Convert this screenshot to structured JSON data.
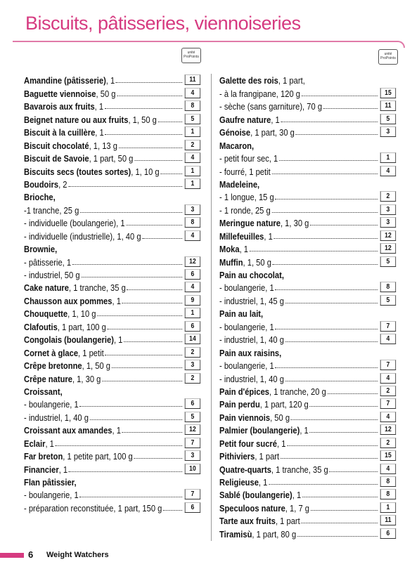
{
  "header": {
    "title": "Biscuits, pâtisseries, viennoiseries",
    "badges": [
      "unité ProPoints",
      "unité ProPoints"
    ]
  },
  "columns": [
    [
      {
        "name": "Amandine (pâtisserie)",
        "detail": ", 1",
        "points": 11
      },
      {
        "name": "Baguette viennoise",
        "detail": ", 50 g",
        "points": 4
      },
      {
        "name": "Bavarois aux fruits",
        "detail": ", 1",
        "points": 8
      },
      {
        "name": "Beignet nature ou aux fruits",
        "detail": ", 1, 50 g",
        "points": 5
      },
      {
        "name": "Biscuit à la cuillère",
        "detail": ", 1",
        "points": 1
      },
      {
        "name": "Biscuit chocolaté",
        "detail": ", 1, 13 g",
        "points": 2
      },
      {
        "name": "Biscuit de Savoie",
        "detail": ", 1 part, 50 g",
        "points": 4
      },
      {
        "name": "Biscuits secs (toutes sortes)",
        "detail": ", 1, 10 g",
        "points": 1
      },
      {
        "name": "Boudoirs",
        "detail": ", 2",
        "points": 1
      },
      {
        "name": "Brioche,"
      },
      {
        "detail": "-1 tranche, 25 g",
        "points": 3
      },
      {
        "detail": "- individuelle (boulangerie), 1",
        "points": 8
      },
      {
        "detail": "- individuelle (industrielle), 1, 40 g",
        "points": 4
      },
      {
        "name": "Brownie,"
      },
      {
        "detail": "- pâtisserie, 1",
        "points": 12
      },
      {
        "detail": "- industriel, 50 g",
        "points": 6
      },
      {
        "name": "Cake nature",
        "detail": ", 1 tranche, 35 g",
        "points": 4
      },
      {
        "name": "Chausson aux pommes",
        "detail": ", 1",
        "points": 9
      },
      {
        "name": "Chouquette",
        "detail": ", 1, 10 g",
        "points": 1
      },
      {
        "name": "Clafoutis",
        "detail": ", 1 part, 100 g",
        "points": 6
      },
      {
        "name": "Congolais (boulangerie)",
        "detail": ", 1",
        "points": 14
      },
      {
        "name": "Cornet à glace",
        "detail": ", 1 petit",
        "points": 2
      },
      {
        "name": "Crêpe bretonne",
        "detail": ", 1, 50 g",
        "points": 3
      },
      {
        "name": "Crêpe nature",
        "detail": ", 1, 30 g",
        "points": 2
      },
      {
        "name": "Croissant,"
      },
      {
        "detail": "- boulangerie, 1",
        "points": 6
      },
      {
        "detail": "- industriel, 1, 40 g",
        "points": 5
      },
      {
        "name": "Croissant aux amandes",
        "detail": ", 1",
        "points": 12
      },
      {
        "name": "Eclair",
        "detail": ", 1",
        "points": 7
      },
      {
        "name": "Far breton",
        "detail": ", 1 petite part, 100 g",
        "points": 3
      },
      {
        "name": "Financier",
        "detail": ", 1",
        "points": 10
      },
      {
        "name": "Flan pâtissier,"
      },
      {
        "detail": "- boulangerie, 1",
        "points": 7
      },
      {
        "detail": "- préparation reconstituée, 1 part, 150 g",
        "points": 6
      }
    ],
    [
      {
        "name": "Galette des rois",
        "detail": ", 1 part,"
      },
      {
        "detail": "- à la frangipane, 120 g",
        "points": 15
      },
      {
        "detail": "- sèche (sans garniture), 70 g",
        "points": 11
      },
      {
        "name": "Gaufre nature",
        "detail": ", 1",
        "points": 5
      },
      {
        "name": "Génoise",
        "detail": ", 1 part, 30 g",
        "points": 3
      },
      {
        "name": "Macaron,"
      },
      {
        "detail": "- petit four sec, 1",
        "points": 1
      },
      {
        "detail": "- fourré, 1 petit",
        "points": 4
      },
      {
        "name": "Madeleine,"
      },
      {
        "detail": "- 1 longue, 15 g",
        "points": 2
      },
      {
        "detail": "- 1 ronde, 25 g",
        "points": 3
      },
      {
        "name": "Meringue nature",
        "detail": ", 1, 30 g",
        "points": 3
      },
      {
        "name": "Millefeuilles",
        "detail": ", 1",
        "points": 12
      },
      {
        "name": "Moka",
        "detail": ", 1",
        "points": 12
      },
      {
        "name": "Muffin",
        "detail": ", 1, 50 g",
        "points": 5
      },
      {
        "name": "Pain au chocolat,"
      },
      {
        "detail": "- boulangerie, 1",
        "points": 8
      },
      {
        "detail": "- industriel, 1, 45 g",
        "points": 5
      },
      {
        "name": "Pain au lait,"
      },
      {
        "detail": "- boulangerie, 1",
        "points": 7
      },
      {
        "detail": "- industriel, 1, 40 g",
        "points": 4
      },
      {
        "name": "Pain aux raisins,"
      },
      {
        "detail": "- boulangerie, 1",
        "points": 7
      },
      {
        "detail": "- industriel, 1, 40 g",
        "points": 4
      },
      {
        "name": "Pain d'épices",
        "detail": ", 1 tranche, 20 g",
        "points": 2
      },
      {
        "name": "Pain perdu",
        "detail": ", 1 part, 120 g",
        "points": 7
      },
      {
        "name": "Pain viennois",
        "detail": ", 50 g",
        "points": 4
      },
      {
        "name": "Palmier (boulangerie)",
        "detail": ", 1",
        "points": 12
      },
      {
        "name": "Petit four sucré",
        "detail": ", 1",
        "points": 2
      },
      {
        "name": "Pithiviers",
        "detail": ", 1 part",
        "points": 15
      },
      {
        "name": "Quatre-quarts",
        "detail": ", 1 tranche, 35 g",
        "points": 4
      },
      {
        "name": "Religieuse",
        "detail": ", 1",
        "points": 8
      },
      {
        "name": "Sablé (boulangerie)",
        "detail": ", 1",
        "points": 8
      },
      {
        "name": "Speculoos nature",
        "detail": ", 1, 7 g",
        "points": 1
      },
      {
        "name": "Tarte aux fruits",
        "detail": ", 1 part",
        "points": 11
      },
      {
        "name": "Tiramisù",
        "detail": ", 1 part, 80 g",
        "points": 6
      }
    ]
  ],
  "footer": {
    "page": "6",
    "brand": "Weight Watchers"
  }
}
